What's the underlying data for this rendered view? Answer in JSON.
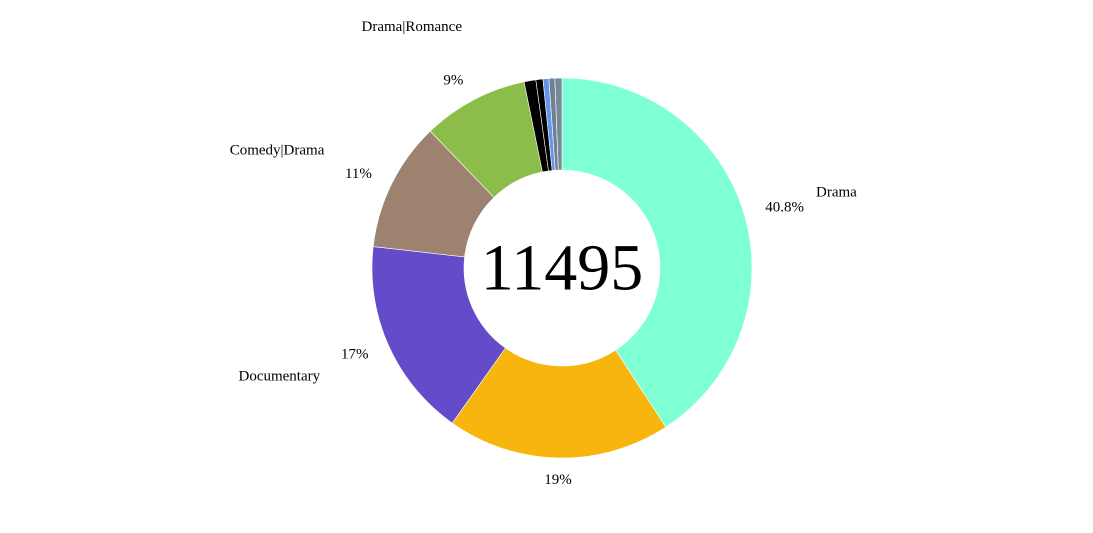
{
  "chart_data": {
    "type": "pie",
    "donut": true,
    "center_label": "11495",
    "slices": [
      {
        "category": "Drama",
        "percent": 40.8,
        "value_label": "40.8%",
        "color": "#7fffd4"
      },
      {
        "category": "",
        "percent": 19,
        "value_label": "19%",
        "color": "#f7b50e"
      },
      {
        "category": "Documentary",
        "percent": 17,
        "value_label": "17%",
        "color": "#634bc9"
      },
      {
        "category": "Comedy|Drama",
        "percent": 11,
        "value_label": "11%",
        "color": "#9d8270"
      },
      {
        "category": "",
        "percent": 9,
        "value_label": "9%",
        "color": "#8cbd4b"
      },
      {
        "category": "Drama|Romance",
        "percent": 1.0,
        "value_label": "",
        "color": "#000000"
      },
      {
        "category": "",
        "percent": 0.6,
        "value_label": "",
        "color": "#000000"
      },
      {
        "category": "",
        "percent": 0.5,
        "value_label": "",
        "color": "#6495ed"
      },
      {
        "category": "",
        "percent": 0.5,
        "value_label": "",
        "color": "#708090"
      },
      {
        "category": "",
        "percent": 0.6,
        "value_label": "",
        "color": "#778899"
      }
    ]
  }
}
